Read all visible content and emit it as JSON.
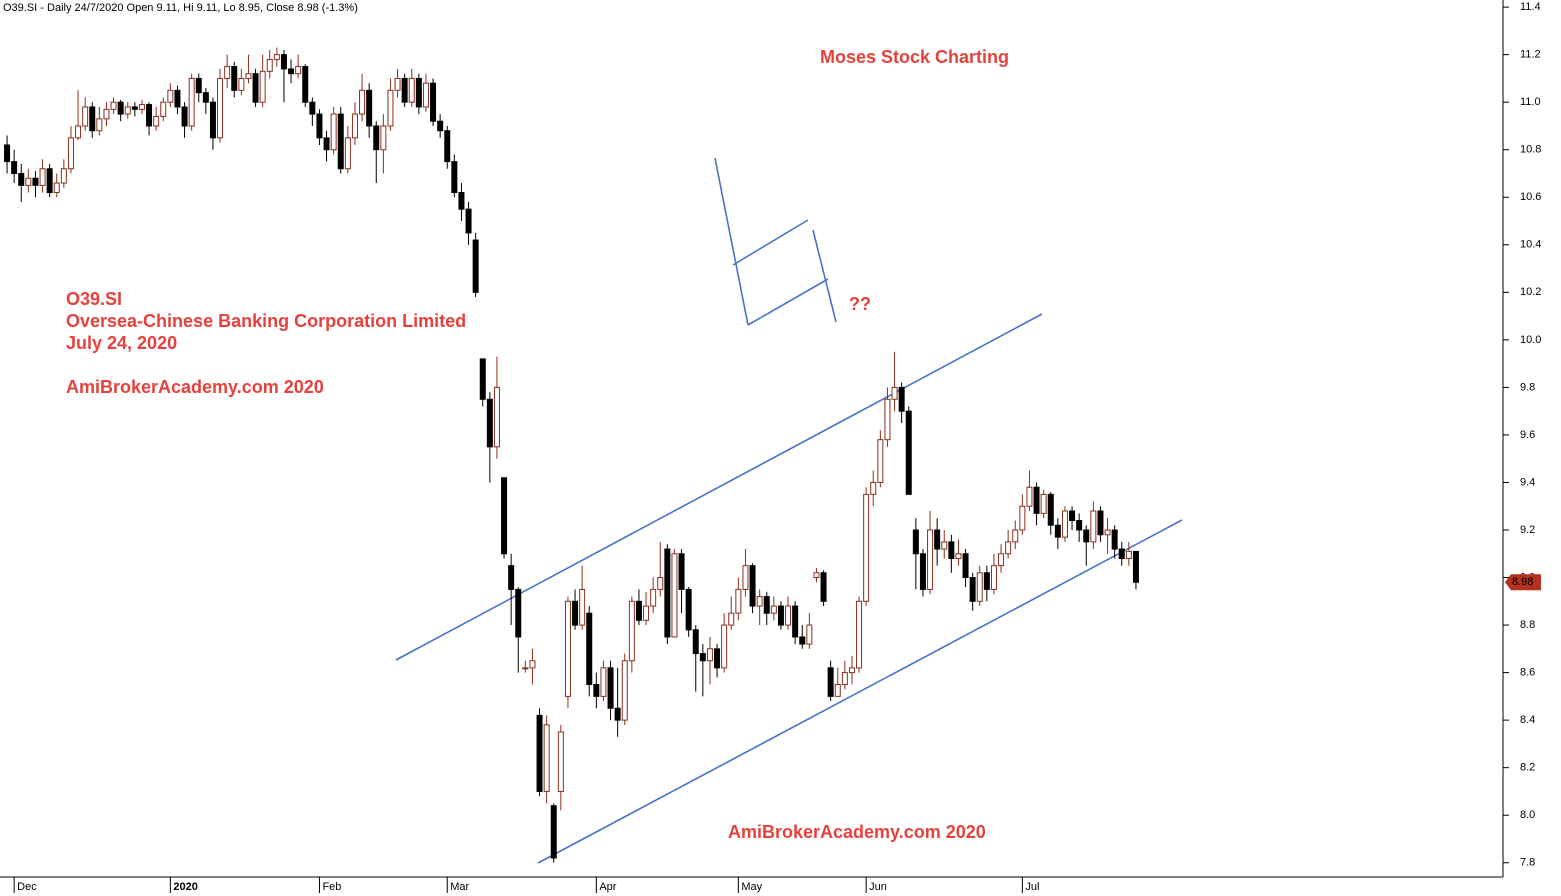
{
  "chart_data": {
    "type": "candlestick",
    "title": "O39.SI - Daily 24/7/2020 Open 9.11, Hi 9.11, Lo 8.95, Close 8.98 (-1.3%)",
    "annotations": [
      "Moses Stock Charting",
      "O39.SI",
      "Oversea-Chinese Banking Corporation Limited",
      "July 24, 2020",
      "AmiBrokerAcademy.com  2020",
      "??",
      "AmiBrokerAcademy.com  2020"
    ],
    "categories": [
      null,
      "Dec",
      null,
      null,
      null,
      null,
      null,
      null,
      null,
      null,
      null,
      null,
      null,
      null,
      null,
      null,
      null,
      null,
      null,
      null,
      null,
      null,
      null,
      "2020",
      null,
      null,
      null,
      null,
      null,
      null,
      null,
      null,
      null,
      null,
      null,
      null,
      null,
      null,
      null,
      null,
      null,
      null,
      null,
      null,
      "Feb",
      null,
      null,
      null,
      null,
      null,
      null,
      null,
      null,
      null,
      null,
      null,
      null,
      null,
      null,
      null,
      null,
      null,
      "Mar",
      null,
      null,
      null,
      null,
      null,
      null,
      null,
      null,
      null,
      null,
      null,
      null,
      null,
      null,
      null,
      null,
      null,
      null,
      null,
      null,
      "Apr",
      null,
      null,
      null,
      null,
      null,
      null,
      null,
      null,
      null,
      null,
      null,
      null,
      null,
      null,
      null,
      null,
      null,
      null,
      null,
      "May",
      null,
      null,
      null,
      null,
      null,
      null,
      null,
      null,
      null,
      null,
      null,
      null,
      null,
      null,
      null,
      null,
      null,
      "Jun",
      null,
      null,
      null,
      null,
      null,
      null,
      null,
      null,
      null,
      null,
      null,
      null,
      null,
      null,
      null,
      null,
      null,
      null,
      null,
      null,
      null,
      "Jul",
      null,
      null,
      null,
      null,
      null,
      null,
      null,
      null,
      null,
      null,
      null,
      null,
      null,
      null,
      null,
      null
    ],
    "open": [
      10.82,
      10.75,
      10.7,
      10.65,
      10.68,
      10.65,
      10.72,
      10.62,
      10.66,
      10.72,
      10.85,
      10.9,
      10.98,
      10.88,
      10.93,
      10.97,
      11.0,
      10.95,
      10.98,
      10.97,
      10.99,
      10.9,
      10.94,
      11.0,
      11.05,
      10.98,
      10.9,
      11.1,
      11.04,
      11.0,
      10.85,
      11.1,
      11.15,
      11.05,
      11.1,
      11.12,
      11.0,
      11.13,
      11.18,
      11.2,
      11.14,
      11.12,
      11.15,
      11.0,
      10.95,
      10.85,
      10.8,
      10.95,
      10.72,
      10.85,
      10.95,
      11.05,
      10.9,
      10.8,
      10.9,
      11.05,
      11.1,
      11.0,
      11.1,
      10.98,
      11.08,
      10.92,
      10.88,
      10.75,
      10.62,
      10.55,
      10.42,
      9.92,
      9.75,
      9.55,
      9.42,
      9.05,
      8.95,
      8.62,
      8.62,
      8.42,
      8.1,
      8.04,
      8.1,
      8.5,
      8.9,
      8.8,
      8.85,
      8.55,
      8.5,
      8.62,
      8.45,
      8.4,
      8.65,
      8.9,
      8.82,
      8.88,
      8.95,
      9.12,
      8.75,
      9.1,
      8.95,
      8.78,
      8.68,
      8.65,
      8.7,
      8.62,
      8.8,
      8.85,
      8.95,
      9.05,
      8.88,
      8.92,
      8.85,
      8.88,
      8.8,
      8.88,
      8.75,
      8.72,
      9.0,
      9.02,
      8.62,
      8.5,
      8.55,
      8.6,
      8.62,
      8.9,
      9.35,
      9.4,
      9.58,
      9.75,
      9.8,
      9.7,
      9.2,
      9.1,
      8.95,
      9.2,
      9.12,
      9.15,
      9.08,
      9.1,
      9.0,
      8.9,
      9.02,
      8.95,
      9.05,
      9.1,
      9.15,
      9.2,
      9.3,
      9.38,
      9.27,
      9.35,
      9.22,
      9.17,
      9.28,
      9.24,
      9.2,
      9.15,
      9.28,
      9.18,
      9.2,
      9.12,
      9.08,
      9.11
    ],
    "high": [
      10.86,
      10.8,
      10.74,
      10.72,
      10.71,
      10.76,
      10.74,
      10.7,
      10.76,
      10.9,
      11.05,
      11.02,
      11.0,
      10.98,
      11.0,
      11.02,
      11.01,
      11.0,
      11.0,
      11.01,
      11.0,
      10.98,
      11.02,
      11.08,
      11.07,
      11.0,
      11.12,
      11.12,
      11.06,
      11.02,
      11.14,
      11.2,
      11.17,
      11.14,
      11.2,
      11.14,
      11.2,
      11.22,
      11.23,
      11.22,
      11.18,
      11.2,
      11.16,
      11.02,
      10.97,
      10.88,
      10.98,
      10.98,
      10.9,
      11.0,
      11.12,
      11.08,
      10.92,
      10.95,
      11.1,
      11.14,
      11.12,
      11.14,
      11.12,
      11.12,
      11.1,
      10.95,
      10.9,
      10.78,
      10.66,
      10.58,
      10.45,
      9.92,
      9.78,
      9.93,
      9.42,
      9.1,
      8.96,
      8.65,
      8.7,
      8.45,
      8.42,
      8.05,
      8.38,
      8.92,
      8.95,
      9.05,
      8.88,
      8.6,
      8.65,
      8.65,
      8.62,
      8.68,
      8.92,
      8.95,
      8.94,
      9.0,
      9.15,
      9.14,
      9.12,
      9.12,
      8.96,
      8.8,
      8.72,
      8.75,
      8.72,
      8.85,
      8.92,
      9.0,
      9.12,
      9.06,
      8.95,
      8.94,
      8.92,
      8.9,
      8.92,
      8.9,
      8.8,
      8.85,
      9.04,
      9.03,
      8.65,
      8.62,
      8.65,
      8.67,
      8.92,
      9.38,
      9.45,
      9.62,
      9.8,
      9.95,
      9.82,
      9.72,
      9.25,
      9.12,
      9.28,
      9.25,
      9.2,
      9.18,
      9.16,
      9.12,
      9.02,
      9.05,
      9.05,
      9.1,
      9.14,
      9.2,
      9.24,
      9.35,
      9.45,
      9.4,
      9.37,
      9.36,
      9.25,
      9.3,
      9.3,
      9.27,
      9.22,
      9.32,
      9.3,
      9.25,
      9.22,
      9.15,
      9.15,
      9.11
    ],
    "low": [
      10.7,
      10.66,
      10.58,
      10.62,
      10.6,
      10.62,
      10.6,
      10.6,
      10.64,
      10.7,
      10.84,
      10.88,
      10.85,
      10.86,
      10.9,
      10.95,
      10.92,
      10.93,
      10.94,
      10.95,
      10.86,
      10.88,
      10.92,
      10.98,
      10.95,
      10.85,
      10.88,
      11.0,
      10.95,
      10.8,
      10.83,
      11.06,
      11.02,
      11.03,
      11.08,
      10.98,
      10.98,
      11.1,
      11.15,
      11.0,
      11.08,
      11.1,
      10.98,
      10.9,
      10.82,
      10.75,
      10.78,
      10.7,
      10.7,
      10.82,
      10.92,
      10.85,
      10.66,
      10.7,
      10.88,
      11.02,
      10.98,
      10.98,
      10.95,
      10.96,
      10.9,
      10.85,
      10.72,
      10.6,
      10.5,
      10.4,
      10.18,
      9.72,
      9.4,
      9.5,
      9.08,
      8.8,
      8.6,
      8.6,
      8.55,
      8.08,
      8.05,
      7.8,
      8.02,
      8.45,
      8.78,
      8.78,
      8.5,
      8.45,
      8.48,
      8.4,
      8.33,
      8.38,
      8.6,
      8.8,
      8.8,
      8.85,
      8.92,
      8.72,
      8.75,
      8.85,
      8.75,
      8.52,
      8.5,
      8.55,
      8.58,
      8.6,
      8.78,
      8.82,
      8.92,
      8.85,
      8.8,
      8.8,
      8.82,
      8.78,
      8.78,
      8.72,
      8.7,
      8.7,
      8.98,
      8.88,
      8.48,
      8.5,
      8.53,
      8.55,
      8.6,
      8.88,
      9.3,
      9.38,
      9.55,
      9.7,
      9.65,
      9.35,
      8.95,
      8.92,
      8.93,
      9.05,
      9.08,
      9.02,
      9.05,
      8.96,
      8.86,
      8.88,
      8.9,
      8.93,
      9.02,
      9.08,
      9.12,
      9.18,
      9.28,
      9.22,
      9.25,
      9.18,
      9.12,
      9.15,
      9.2,
      9.15,
      9.05,
      9.12,
      9.15,
      9.1,
      9.08,
      9.05,
      9.05,
      8.95
    ],
    "close": [
      10.75,
      10.7,
      10.65,
      10.68,
      10.65,
      10.72,
      10.62,
      10.66,
      10.72,
      10.85,
      10.9,
      10.98,
      10.88,
      10.93,
      10.97,
      11.0,
      10.95,
      10.98,
      10.97,
      10.99,
      10.9,
      10.94,
      11.0,
      11.05,
      10.98,
      10.9,
      11.1,
      11.04,
      11.0,
      10.85,
      11.1,
      11.15,
      11.05,
      11.1,
      11.12,
      11.0,
      11.13,
      11.18,
      11.2,
      11.14,
      11.12,
      11.15,
      11.0,
      10.95,
      10.85,
      10.8,
      10.95,
      10.72,
      10.85,
      10.95,
      11.05,
      10.9,
      10.8,
      10.9,
      11.05,
      11.1,
      11.0,
      11.1,
      10.98,
      11.08,
      10.92,
      10.88,
      10.75,
      10.62,
      10.55,
      10.45,
      10.2,
      9.75,
      9.55,
      9.8,
      9.1,
      8.95,
      8.75,
      8.62,
      8.65,
      8.1,
      8.38,
      7.82,
      8.35,
      8.9,
      8.8,
      8.95,
      8.55,
      8.5,
      8.62,
      8.45,
      8.4,
      8.65,
      8.9,
      8.82,
      8.88,
      8.95,
      9.0,
      8.75,
      9.1,
      8.95,
      8.78,
      8.68,
      8.65,
      8.7,
      8.62,
      8.8,
      8.85,
      8.95,
      9.05,
      8.88,
      8.92,
      8.85,
      8.88,
      8.8,
      8.88,
      8.75,
      8.72,
      8.8,
      9.02,
      8.9,
      8.5,
      8.55,
      8.6,
      8.62,
      8.9,
      9.35,
      9.4,
      9.58,
      9.75,
      9.8,
      9.7,
      9.35,
      9.1,
      8.95,
      9.2,
      9.12,
      9.15,
      9.08,
      9.1,
      9.0,
      8.9,
      9.02,
      8.95,
      9.05,
      9.1,
      9.15,
      9.2,
      9.3,
      9.38,
      9.27,
      9.35,
      9.22,
      9.17,
      9.28,
      9.24,
      9.2,
      9.15,
      9.28,
      9.18,
      9.2,
      9.12,
      9.08,
      9.11,
      8.98
    ],
    "up_color": "#8b2e1a",
    "down_color": "#000000",
    "tag_color": "#b5311f",
    "ylim": [
      7.74,
      11.43
    ],
    "yticks": [
      7.8,
      {
        "value": 8.0,
        "label": "8.0"
      },
      8.2,
      8.4,
      8.6,
      8.8,
      {
        "value": 9.0,
        "label": "9.0"
      },
      9.2,
      9.4,
      9.6,
      9.8,
      {
        "value": 10.0,
        "label": "10.0"
      },
      10.2,
      10.4,
      10.6,
      10.8,
      {
        "value": 11.0,
        "label": "11.0"
      },
      11.2,
      11.4
    ]
  }
}
